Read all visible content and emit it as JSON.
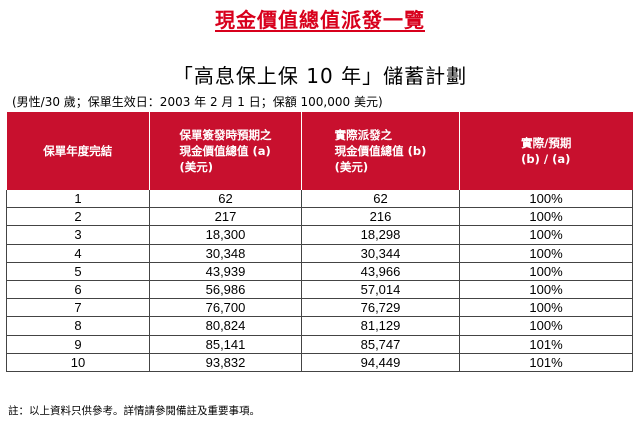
{
  "document": {
    "title": "現金價值總值派發一覽",
    "subtitle": "「高息保上保 10 年」儲蓄計劃",
    "details": "(男性/30 歲；保單生效日：2003 年 2 月 1 日；保額 100,000 美元)",
    "footnote": "註：以上資料只供參考。詳情請參閱備註及重要事項。"
  },
  "table": {
    "headers": [
      {
        "lines": [
          "保單年度完結"
        ]
      },
      {
        "lines": [
          "保單簽發時預期之",
          "現金價值總值 (a)",
          "(美元)"
        ]
      },
      {
        "lines": [
          "實際派發之",
          "現金價值總值 (b)",
          "(美元)"
        ]
      },
      {
        "lines": [
          "實際/預期",
          "(b) / (a)"
        ]
      }
    ],
    "rows": [
      [
        "1",
        "62",
        "62",
        "100%"
      ],
      [
        "2",
        "217",
        "216",
        "100%"
      ],
      [
        "3",
        "18,300",
        "18,298",
        "100%"
      ],
      [
        "4",
        "30,348",
        "30,344",
        "100%"
      ],
      [
        "5",
        "43,939",
        "43,966",
        "100%"
      ],
      [
        "6",
        "56,986",
        "57,014",
        "100%"
      ],
      [
        "7",
        "76,700",
        "76,729",
        "100%"
      ],
      [
        "8",
        "80,824",
        "81,129",
        "100%"
      ],
      [
        "9",
        "85,141",
        "85,747",
        "101%"
      ],
      [
        "10",
        "93,832",
        "94,449",
        "101%"
      ]
    ]
  },
  "colors": {
    "title": "#d8001c",
    "header_background": "#c8102e",
    "header_text": "#ffffff"
  }
}
